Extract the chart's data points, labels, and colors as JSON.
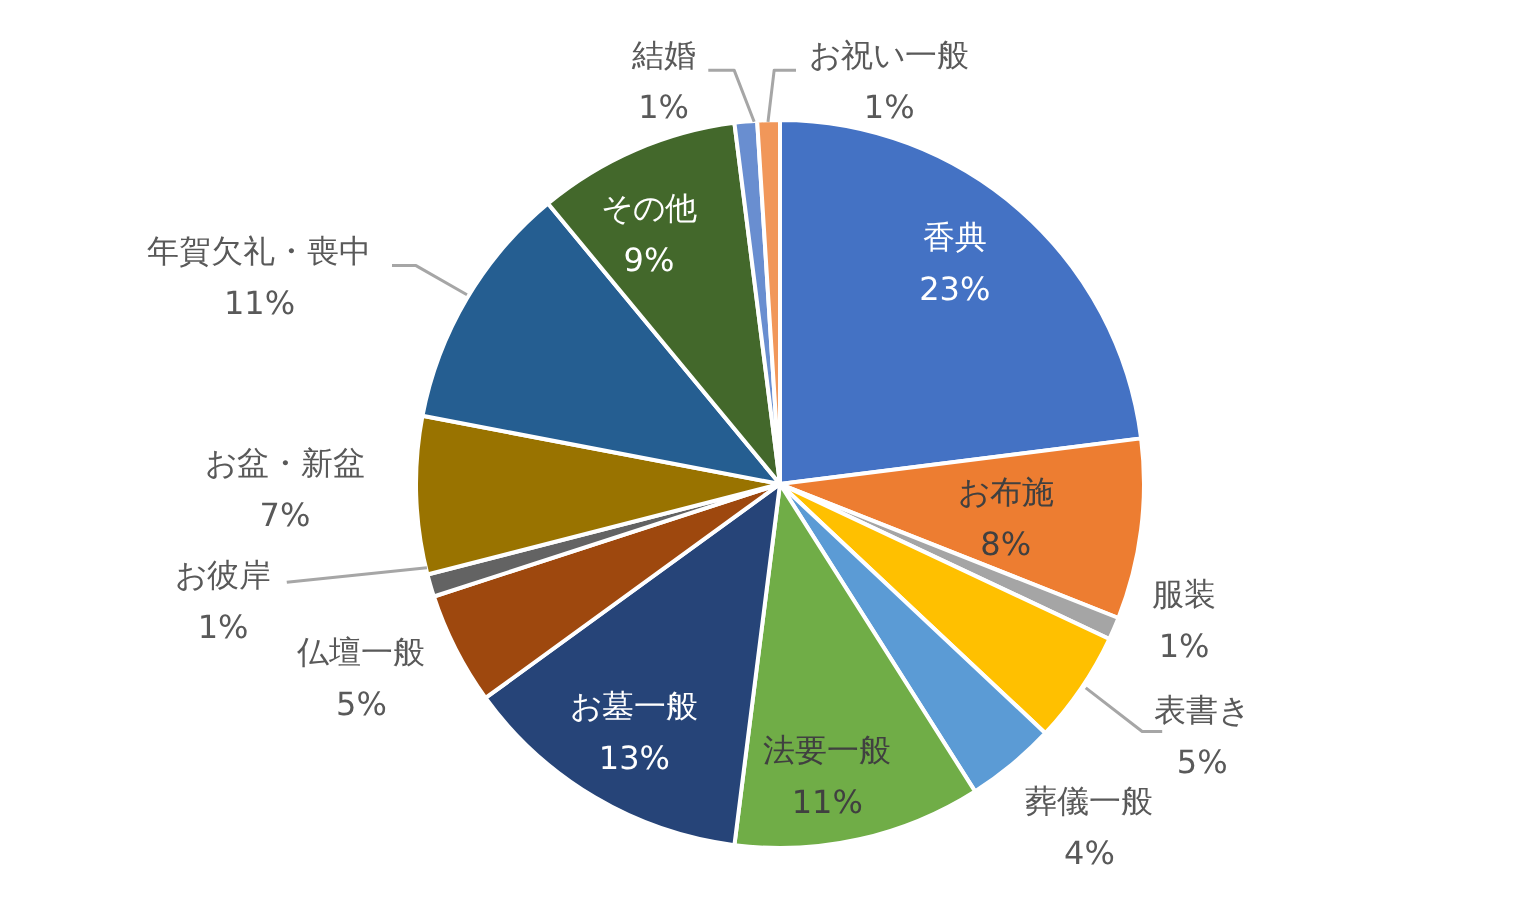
{
  "chart_data": {
    "type": "pie",
    "categories": [
      "香典",
      "お布施",
      "服装",
      "表書き",
      "葬儀一般",
      "法要一般",
      "お墓一般",
      "仏壇一般",
      "お彼岸",
      "お盆・新盆",
      "年賀欠礼・喪中",
      "その他",
      "結婚",
      "お祝い一般"
    ],
    "values": [
      23,
      8,
      1,
      5,
      4,
      11,
      13,
      5,
      1,
      7,
      11,
      9,
      1,
      1
    ],
    "colors": [
      "#4472c4",
      "#ed7d31",
      "#a5a5a5",
      "#ffc000",
      "#5b9bd5",
      "#70ad47",
      "#264478",
      "#9e480e",
      "#636363",
      "#997300",
      "#255e91",
      "#43682b",
      "#698ed0",
      "#f1975a"
    ],
    "value_labels": [
      "23%",
      "8%",
      "1%",
      "5%",
      "4%",
      "11%",
      "13%",
      "5%",
      "1%",
      "7%",
      "11%",
      "9%",
      "1%",
      "1%"
    ],
    "legend": false
  }
}
